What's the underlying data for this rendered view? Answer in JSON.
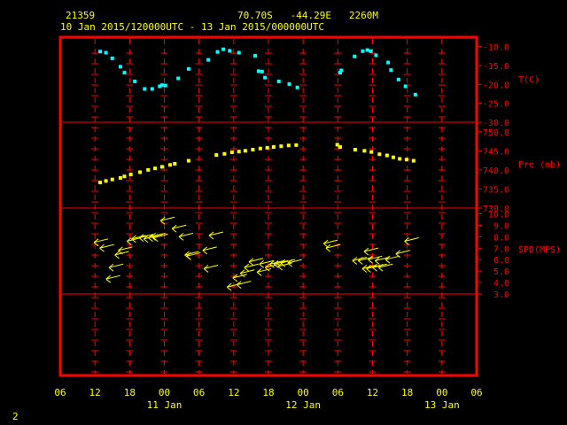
{
  "header": {
    "station": "21359",
    "location": "70.70S   -44.29E   2260M",
    "period": "10 Jan 2015/120000UTC - 13 Jan 2015/000000UTC"
  },
  "footer": {
    "page_number": "2"
  },
  "colors": {
    "frame": "#ff0000",
    "axis_text": "#ff0000",
    "header_text": "#ffff00",
    "temperature": "#00ffff",
    "pressure": "#ffff00",
    "wind": "#ffff00"
  },
  "chart_data": {
    "type": "scatter",
    "time_unit": "hours since 10 Jan 2015 06 UTC",
    "x_range": [
      0,
      72
    ],
    "x_ticks": [
      "06",
      "12",
      "18",
      "00",
      "06",
      "12",
      "18",
      "00",
      "06",
      "12",
      "18",
      "00",
      "06"
    ],
    "date_labels": [
      {
        "label": "11 Jan",
        "at": 18
      },
      {
        "label": "12 Jan",
        "at": 42
      },
      {
        "label": "13 Jan",
        "at": 66
      }
    ],
    "panels": [
      {
        "name": "temperature",
        "ylabel": "T(C)",
        "ylim": [
          -30,
          -7.5
        ],
        "y_ticks": [
          "-10.0",
          "-15.0",
          "-20.0",
          "-25.0",
          "-30.0"
        ],
        "x": [
          6.9,
          7.9,
          9.0,
          10.4,
          11.1,
          12.9,
          14.6,
          15.9,
          17.2,
          17.6,
          18.2,
          20.4,
          22.2,
          25.6,
          27.2,
          28.2,
          29.3,
          30.9,
          33.7,
          34.3,
          34.9,
          35.4,
          37.8,
          39.6,
          41.0,
          48.4,
          48.6,
          50.9,
          52.3,
          53.1,
          53.7,
          54.6,
          56.7,
          57.2,
          58.5,
          59.7,
          61.4
        ],
        "y": [
          -11.3,
          -11.6,
          -13.1,
          -15.3,
          -16.9,
          -19.2,
          -21.2,
          -21.2,
          -20.5,
          -20.2,
          -20.3,
          -18.4,
          -15.9,
          -13.5,
          -11.4,
          -10.7,
          -11.1,
          -11.6,
          -12.4,
          -16.5,
          -16.6,
          -18.2,
          -19.2,
          -19.9,
          -20.8,
          -16.9,
          -16.3,
          -12.6,
          -11.2,
          -10.9,
          -11.2,
          -12.3,
          -14.2,
          -16.2,
          -18.7,
          -20.5,
          -22.7
        ]
      },
      {
        "name": "pressure",
        "ylabel": "Pre (mb)",
        "ylim": [
          730,
          752.5
        ],
        "y_ticks": [
          "750.0",
          "745.0",
          "740.0",
          "735.0",
          "730.0"
        ],
        "x": [
          6.9,
          7.9,
          9.0,
          10.4,
          11.1,
          12.2,
          13.8,
          15.2,
          16.4,
          17.6,
          19.0,
          19.8,
          22.2,
          27.0,
          28.4,
          29.7,
          30.9,
          32.0,
          33.3,
          34.6,
          35.8,
          36.9,
          38.2,
          39.5,
          40.8,
          47.9,
          48.4,
          51.0,
          52.6,
          53.8,
          55.2,
          56.5,
          57.6,
          58.7,
          59.9,
          61.1
        ],
        "y": [
          736.7,
          737.1,
          737.5,
          737.9,
          738.3,
          738.8,
          739.4,
          740.0,
          740.4,
          740.8,
          741.3,
          741.6,
          742.4,
          743.9,
          744.2,
          744.6,
          744.8,
          745.0,
          745.3,
          745.6,
          745.8,
          746.0,
          746.2,
          746.4,
          746.5,
          746.6,
          746.0,
          745.3,
          745.0,
          744.7,
          744.1,
          743.8,
          743.3,
          742.9,
          742.7,
          742.4
        ]
      },
      {
        "name": "wind",
        "ylabel": "SPD(MPS)",
        "ylim": [
          3,
          10.5
        ],
        "y_ticks": [
          "10.0",
          "9.0",
          "8.0",
          "7.0",
          "6.0",
          "5.0",
          "4.0",
          "3.0"
        ],
        "x": [
          6.9,
          7.9,
          9.0,
          9.5,
          10.5,
          11.1,
          12.6,
          13.4,
          14.7,
          15.5,
          16.3,
          16.8,
          17.2,
          18.4,
          20.4,
          21.6,
          22.6,
          22.9,
          25.7,
          25.9,
          26.8,
          29.9,
          30.9,
          31.6,
          32.2,
          32.9,
          33.7,
          35.1,
          35.5,
          36.5,
          37.3,
          38.0,
          38.7,
          39.2,
          40.4,
          46.6,
          47.0,
          51.6,
          52.6,
          53.3,
          53.6,
          54.0,
          54.3,
          55.1,
          55.5,
          56.1,
          57.3,
          59.1,
          60.6
        ],
        "y": [
          7.5,
          7.0,
          4.3,
          5.3,
          6.4,
          6.8,
          7.6,
          7.8,
          7.9,
          7.8,
          7.9,
          8.0,
          7.9,
          9.4,
          8.7,
          8.0,
          6.4,
          6.3,
          6.8,
          5.2,
          8.1,
          3.6,
          4.4,
          3.8,
          4.8,
          5.3,
          5.8,
          4.9,
          5.6,
          5.3,
          5.6,
          5.6,
          5.4,
          5.7,
          5.7,
          7.4,
          7.0,
          5.9,
          5.9,
          5.2,
          6.7,
          5.2,
          6.0,
          5.3,
          5.9,
          5.3,
          6.0,
          6.5,
          7.6
        ]
      }
    ]
  }
}
